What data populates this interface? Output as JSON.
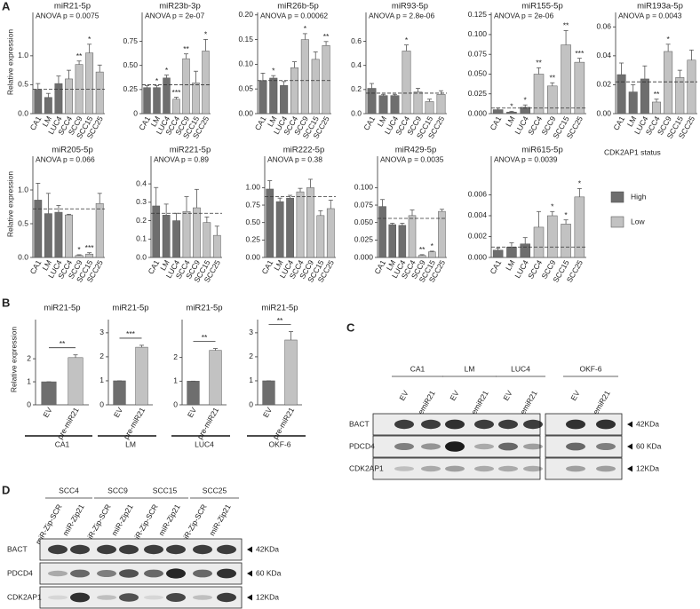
{
  "panel_a": {
    "label": "A",
    "ylabel": "Relative expression",
    "legend": {
      "title": "CDK2AP1 status",
      "entries": [
        {
          "name": "High",
          "color": "#6e6e6e"
        },
        {
          "name": "Low",
          "color": "#c2c2c2"
        }
      ]
    }
  },
  "panel_b": {
    "label": "B",
    "ylabel": "Relative expression"
  },
  "chart_data": [
    {
      "type": "bar",
      "title": "miR21-5p",
      "subtitle": "ANOVA p = 0.0075",
      "categories": [
        "CA1",
        "LM",
        "LUC4",
        "SCC4",
        "SCC9",
        "SCC15",
        "SCC25"
      ],
      "values": [
        0.42,
        0.28,
        0.52,
        0.6,
        0.85,
        1.05,
        0.72
      ],
      "errors": [
        0.1,
        0.07,
        0.13,
        0.15,
        0.06,
        0.15,
        0.12
      ],
      "stars": [
        null,
        null,
        null,
        null,
        "**",
        "*",
        null
      ],
      "reference_line": 0.42,
      "colors": [
        "#6e6e6e",
        "#6e6e6e",
        "#6e6e6e",
        "#c2c2c2",
        "#c2c2c2",
        "#c2c2c2",
        "#c2c2c2"
      ],
      "ylim": [
        0,
        1.75
      ],
      "yticks": [
        {
          "value": 0,
          "label": "0.0"
        },
        0.5,
        {
          "value": 1,
          "label": "1.0"
        }
      ]
    },
    {
      "type": "bar",
      "title": "miR23b-3p",
      "subtitle": "ANOVA p = 2e-07",
      "categories": [
        "CA1",
        "LM",
        "LUC4",
        "SCC4",
        "SCC9",
        "SCC15",
        "SCC25"
      ],
      "values": [
        0.27,
        0.27,
        0.37,
        0.15,
        0.57,
        0.32,
        0.65
      ],
      "errors": [
        0.02,
        0.02,
        0.03,
        0.02,
        0.05,
        0.12,
        0.12
      ],
      "stars": [
        null,
        "*",
        "*",
        "***",
        "**",
        null,
        "*"
      ],
      "reference_line": 0.3,
      "colors": [
        "#6e6e6e",
        "#6e6e6e",
        "#6e6e6e",
        "#c2c2c2",
        "#c2c2c2",
        "#c2c2c2",
        "#c2c2c2"
      ],
      "ylim": [
        0,
        1.05
      ],
      "yticks": [
        0,
        0.25,
        {
          "value": 0.5,
          "label": "0.50"
        },
        0.75
      ]
    },
    {
      "type": "bar",
      "title": "miR26b-5p",
      "subtitle": "ANOVA p = 0.00062",
      "categories": [
        "CA1",
        "LM",
        "LUC4",
        "SCC4",
        "SCC9",
        "SCC15",
        "SCC25"
      ],
      "values": [
        0.067,
        0.072,
        0.057,
        0.093,
        0.15,
        0.11,
        0.138
      ],
      "errors": [
        0.015,
        0.005,
        0.008,
        0.012,
        0.012,
        0.015,
        0.008
      ],
      "stars": [
        null,
        "*",
        null,
        null,
        "*",
        null,
        "**"
      ],
      "reference_line": 0.067,
      "colors": [
        "#6e6e6e",
        "#6e6e6e",
        "#6e6e6e",
        "#c2c2c2",
        "#c2c2c2",
        "#c2c2c2",
        "#c2c2c2"
      ],
      "ylim": [
        0,
        0.205
      ],
      "yticks": [
        {
          "value": 0,
          "label": "0.00"
        },
        0.05,
        {
          "value": 0.1,
          "label": "0.10"
        },
        0.15,
        {
          "value": 0.2,
          "label": "0.20"
        }
      ]
    },
    {
      "type": "bar",
      "title": "miR93-5p",
      "subtitle": "ANOVA p = 2.8e-06",
      "categories": [
        "CA1",
        "LM",
        "LUC4",
        "SCC4",
        "SCC9",
        "SCC15",
        "SCC25"
      ],
      "values": [
        0.21,
        0.15,
        0.15,
        0.52,
        0.18,
        0.1,
        0.16
      ],
      "errors": [
        0.04,
        0.01,
        0.01,
        0.05,
        0.03,
        0.02,
        0.03
      ],
      "stars": [
        null,
        null,
        null,
        "*",
        null,
        null,
        null
      ],
      "reference_line": 0.17,
      "colors": [
        "#6e6e6e",
        "#6e6e6e",
        "#6e6e6e",
        "#c2c2c2",
        "#c2c2c2",
        "#c2c2c2",
        "#c2c2c2"
      ],
      "ylim": [
        0,
        0.84
      ],
      "yticks": [
        {
          "value": 0,
          "label": "0.0"
        },
        0.2,
        0.4,
        0.6
      ]
    },
    {
      "type": "bar",
      "title": "miR155-5p",
      "subtitle": "ANOVA p = 2e-06",
      "categories": [
        "CA1",
        "LM",
        "LUC4",
        "SCC4",
        "SCC9",
        "SCC15",
        "SCC25"
      ],
      "values": [
        0.005,
        0.002,
        0.008,
        0.05,
        0.035,
        0.087,
        0.065
      ],
      "errors": [
        0.002,
        0.001,
        0.003,
        0.008,
        0.004,
        0.018,
        0.005
      ],
      "stars": [
        null,
        "*",
        "*",
        "**",
        "**",
        "**",
        "***"
      ],
      "reference_line": 0.007,
      "colors": [
        "#6e6e6e",
        "#6e6e6e",
        "#6e6e6e",
        "#c2c2c2",
        "#c2c2c2",
        "#c2c2c2",
        "#c2c2c2"
      ],
      "ylim": [
        0,
        0.128
      ],
      "yticks": [
        {
          "value": 0,
          "label": "0.000"
        },
        0.025,
        {
          "value": 0.05,
          "label": "0.050"
        },
        0.075,
        {
          "value": 0.1,
          "label": "0.100"
        },
        0.125
      ]
    },
    {
      "type": "bar",
      "title": "miR193a-5p",
      "subtitle": "ANOVA p = 0.0043",
      "categories": [
        "CA1",
        "LM",
        "LUC4",
        "SCC4",
        "SCC9",
        "SCC15",
        "SCC25"
      ],
      "values": [
        0.027,
        0.015,
        0.024,
        0.008,
        0.043,
        0.025,
        0.037
      ],
      "errors": [
        0.008,
        0.005,
        0.009,
        0.002,
        0.005,
        0.005,
        0.007
      ],
      "stars": [
        null,
        null,
        null,
        "**",
        "*",
        null,
        null
      ],
      "reference_line": 0.022,
      "colors": [
        "#6e6e6e",
        "#6e6e6e",
        "#6e6e6e",
        "#c2c2c2",
        "#c2c2c2",
        "#c2c2c2",
        "#c2c2c2"
      ],
      "ylim": [
        0,
        0.07
      ],
      "yticks": [
        {
          "value": 0,
          "label": "0.00"
        },
        0.02,
        0.04,
        0.06
      ]
    },
    {
      "type": "bar",
      "title": "miR205-5p",
      "subtitle": "ANOVA p = 0.066",
      "categories": [
        "CA1",
        "LM",
        "LUC4",
        "SCC4",
        "SCC9",
        "SCC15",
        "SCC25"
      ],
      "values": [
        0.85,
        0.65,
        0.67,
        0.63,
        0.03,
        0.05,
        0.8
      ],
      "errors": [
        0.25,
        0.3,
        0.1,
        0.01,
        0.01,
        0.02,
        0.15
      ],
      "stars": [
        null,
        null,
        null,
        null,
        "*",
        "***",
        null
      ],
      "reference_line": 0.72,
      "colors": [
        "#6e6e6e",
        "#6e6e6e",
        "#6e6e6e",
        "#c2c2c2",
        "#c2c2c2",
        "#c2c2c2",
        "#c2c2c2"
      ],
      "ylim": [
        0,
        1.5
      ],
      "yticks": [
        {
          "value": 0,
          "label": "0.0"
        },
        0.5,
        {
          "value": 1,
          "label": "1.0"
        }
      ]
    },
    {
      "type": "bar",
      "title": "miR221-5p",
      "subtitle": "ANOVA p = 0.89",
      "categories": [
        "CA1",
        "LM",
        "LUC4",
        "SCC4",
        "SCC9",
        "SCC15",
        "SCC25"
      ],
      "values": [
        0.28,
        0.23,
        0.2,
        0.25,
        0.27,
        0.19,
        0.12
      ],
      "errors": [
        0.1,
        0.06,
        0.04,
        0.08,
        0.1,
        0.03,
        0.05
      ],
      "stars": [
        null,
        null,
        null,
        null,
        null,
        null,
        null
      ],
      "reference_line": 0.24,
      "colors": [
        "#6e6e6e",
        "#6e6e6e",
        "#6e6e6e",
        "#c2c2c2",
        "#c2c2c2",
        "#c2c2c2",
        "#c2c2c2"
      ],
      "ylim": [
        0,
        0.55
      ],
      "yticks": [
        {
          "value": 0,
          "label": "0.0"
        },
        0.1,
        0.2,
        0.3,
        0.4
      ]
    },
    {
      "type": "bar",
      "title": "miR222-5p",
      "subtitle": "ANOVA p = 0.38",
      "categories": [
        "CA1",
        "LM",
        "LUC4",
        "SCC4",
        "SCC9",
        "SCC15",
        "SCC25"
      ],
      "values": [
        0.98,
        0.8,
        0.85,
        0.94,
        1.0,
        0.6,
        0.7
      ],
      "errors": [
        0.12,
        0.05,
        0.04,
        0.05,
        0.12,
        0.07,
        0.12
      ],
      "stars": [
        null,
        null,
        null,
        null,
        null,
        null,
        null
      ],
      "reference_line": 0.87,
      "colors": [
        "#6e6e6e",
        "#6e6e6e",
        "#6e6e6e",
        "#c2c2c2",
        "#c2c2c2",
        "#c2c2c2",
        "#c2c2c2"
      ],
      "ylim": [
        0,
        1.45
      ],
      "yticks": [
        {
          "value": 0,
          "label": "0.00"
        },
        0.25,
        {
          "value": 0.5,
          "label": "0.50"
        },
        0.75,
        {
          "value": 1,
          "label": "1.00"
        }
      ]
    },
    {
      "type": "bar",
      "title": "miR429-5p",
      "subtitle": "ANOVA p = 0.0035",
      "categories": [
        "CA1",
        "LM",
        "LUC4",
        "SCC4",
        "SCC9",
        "SCC15",
        "SCC25"
      ],
      "values": [
        0.073,
        0.047,
        0.046,
        0.06,
        0.003,
        0.008,
        0.066
      ],
      "errors": [
        0.01,
        0.002,
        0.003,
        0.008,
        0.001,
        0.001,
        0.003
      ],
      "stars": [
        null,
        null,
        null,
        null,
        "**",
        "*",
        null
      ],
      "reference_line": 0.056,
      "colors": [
        "#6e6e6e",
        "#6e6e6e",
        "#6e6e6e",
        "#c2c2c2",
        "#c2c2c2",
        "#c2c2c2",
        "#c2c2c2"
      ],
      "ylim": [
        0,
        0.145
      ],
      "yticks": [
        {
          "value": 0,
          "label": "0.000"
        },
        0.025,
        {
          "value": 0.05,
          "label": "0.050"
        },
        0.075,
        {
          "value": 0.1,
          "label": "0.100"
        }
      ]
    },
    {
      "type": "bar",
      "title": "miR615-5p",
      "subtitle": "ANOVA p = 0.0039",
      "categories": [
        "CA1",
        "LM",
        "LUC4",
        "SCC4",
        "SCC9",
        "SCC15",
        "SCC25"
      ],
      "values": [
        0.0007,
        0.001,
        0.0013,
        0.0029,
        0.004,
        0.0032,
        0.0058
      ],
      "errors": [
        0.0002,
        0.0004,
        0.0006,
        0.0015,
        0.0004,
        0.0004,
        0.0008
      ],
      "stars": [
        null,
        null,
        null,
        null,
        "*",
        "*",
        "*"
      ],
      "reference_line": 0.001,
      "colors": [
        "#6e6e6e",
        "#6e6e6e",
        "#6e6e6e",
        "#c2c2c2",
        "#c2c2c2",
        "#c2c2c2",
        "#c2c2c2"
      ],
      "ylim": [
        0,
        0.0097
      ],
      "yticks": [
        {
          "value": 0,
          "label": "0.000"
        },
        0.002,
        0.004,
        0.006
      ]
    },
    {
      "type": "pair",
      "title": "miR21-5p",
      "categories": [
        "EV",
        "pre-miR21"
      ],
      "values": [
        1,
        2.05
      ],
      "errors": [
        0,
        0.12
      ],
      "significance": "**",
      "cell_line": "CA1",
      "colors": [
        "#6e6e6e",
        "#c2c2c2"
      ],
      "ylim": [
        0,
        3.7
      ],
      "yticks": [
        0,
        1,
        2
      ]
    },
    {
      "type": "pair",
      "title": "miR21-5p",
      "categories": [
        "EV",
        "pre-miR21"
      ],
      "values": [
        1,
        2.4
      ],
      "errors": [
        0,
        0.08
      ],
      "significance": "***",
      "cell_line": "LM",
      "colors": [
        "#6e6e6e",
        "#c2c2c2"
      ],
      "ylim": [
        0,
        3.55
      ],
      "yticks": [
        0,
        1,
        2,
        3
      ]
    },
    {
      "type": "pair",
      "title": "miR21-5p",
      "categories": [
        "EV",
        "pre-miR21"
      ],
      "values": [
        1,
        2.3
      ],
      "errors": [
        0,
        0.08
      ],
      "significance": "**",
      "cell_line": "LUC4",
      "colors": [
        "#6e6e6e",
        "#c2c2c2"
      ],
      "ylim": [
        0,
        3.6
      ],
      "yticks": [
        0,
        1,
        2
      ]
    },
    {
      "type": "pair",
      "title": "miR21-5p",
      "categories": [
        "EV",
        "pre-miR21"
      ],
      "values": [
        1,
        2.7
      ],
      "errors": [
        0,
        0.35
      ],
      "significance": "**",
      "cell_line": "OKF-6",
      "colors": [
        "#6e6e6e",
        "#c2c2c2"
      ],
      "ylim": [
        0,
        3.55
      ],
      "yticks": [
        0,
        1,
        2,
        3
      ]
    }
  ],
  "panel_c": {
    "label": "C",
    "groups": [
      {
        "name": "CA1",
        "lanes": [
          "EV",
          "premiR21"
        ]
      },
      {
        "name": "LM",
        "lanes": [
          "EV",
          "premiR21"
        ]
      },
      {
        "name": "LUC4",
        "lanes": [
          "EV",
          "premiR21"
        ]
      },
      {
        "name": "OKF-6",
        "lanes": [
          "EV",
          "premiR21"
        ]
      }
    ],
    "rows": [
      {
        "name": "BACT",
        "size": "42KDa"
      },
      {
        "name": "PDCD4",
        "size": "60 KDa"
      },
      {
        "name": "CDK2AP1",
        "size": "12KDa"
      }
    ]
  },
  "panel_d": {
    "label": "D",
    "groups": [
      {
        "name": "SCC4",
        "lanes": [
          "miR-Zip-SCR",
          "miR-Zip21"
        ]
      },
      {
        "name": "SCC9",
        "lanes": [
          "miR-Zip-SCR",
          "miR-Zip21"
        ]
      },
      {
        "name": "SCC15",
        "lanes": [
          "miR-Zip-SCR",
          "miR-Zip21"
        ]
      },
      {
        "name": "SCC25",
        "lanes": [
          "miR-Zip-SCR",
          "miR-Zip21"
        ]
      }
    ],
    "rows": [
      {
        "name": "BACT",
        "size": "42KDa"
      },
      {
        "name": "PDCD4",
        "size": "60 KDa"
      },
      {
        "name": "CDK2AP1",
        "size": "12KDa"
      }
    ]
  }
}
